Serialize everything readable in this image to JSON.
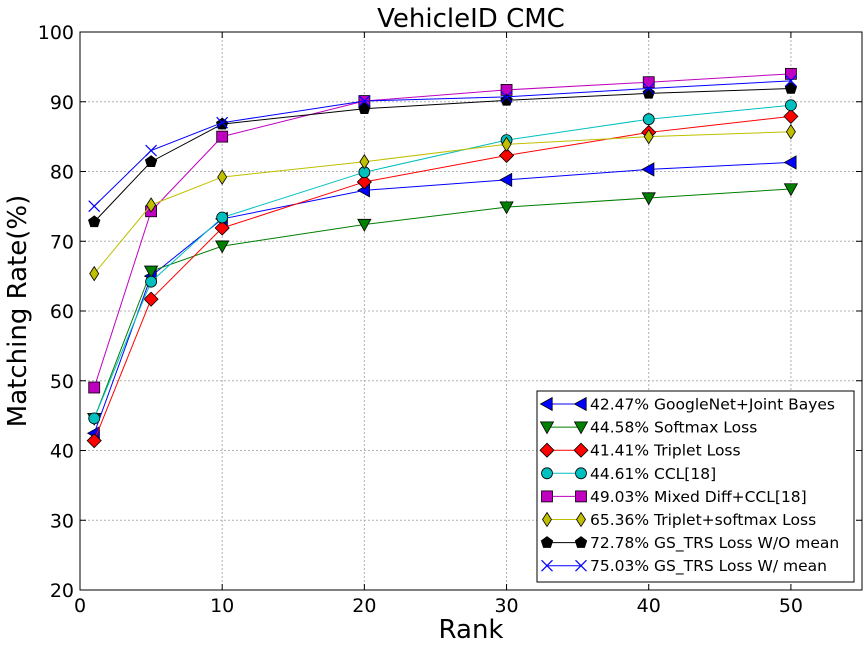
{
  "chart_data": {
    "type": "line",
    "title": "VehicleID CMC",
    "xlabel": "Rank",
    "ylabel": "Matching Rate(%)",
    "xlim": [
      0,
      55
    ],
    "ylim": [
      20,
      100
    ],
    "xticks": [
      0,
      10,
      20,
      30,
      40,
      50
    ],
    "yticks": [
      20,
      30,
      40,
      50,
      60,
      70,
      80,
      90,
      100
    ],
    "grid": true,
    "legend_position": "lower-right",
    "x": [
      1,
      5,
      10,
      20,
      30,
      40,
      50
    ],
    "series": [
      {
        "name": "42.47% GoogleNet+Joint Bayes",
        "color": "#0000ff",
        "marker": "triangle-left",
        "values": [
          42.47,
          65.0,
          73.2,
          77.3,
          78.8,
          80.3,
          81.3
        ]
      },
      {
        "name": "44.58% Softmax Loss",
        "color": "#007f00",
        "marker": "triangle-down",
        "values": [
          44.58,
          65.7,
          69.3,
          72.4,
          74.9,
          76.2,
          77.5
        ]
      },
      {
        "name": "41.41% Triplet Loss",
        "color": "#ff0000",
        "marker": "diamond",
        "values": [
          41.41,
          61.7,
          71.9,
          78.5,
          82.3,
          85.6,
          87.9
        ]
      },
      {
        "name": "44.61% CCL[18]",
        "color": "#00bfbf",
        "marker": "circle",
        "values": [
          44.61,
          64.2,
          73.4,
          79.9,
          84.5,
          87.5,
          89.5
        ]
      },
      {
        "name": "49.03% Mixed Diff+CCL[18]",
        "color": "#bf00bf",
        "marker": "square",
        "values": [
          49.03,
          74.3,
          85.0,
          90.1,
          91.7,
          92.8,
          94.0
        ]
      },
      {
        "name": "65.36% Triplet+softmax Loss",
        "color": "#bfbf00",
        "marker": "thin-diamond",
        "values": [
          65.36,
          75.2,
          79.2,
          81.4,
          83.9,
          85.0,
          85.7
        ]
      },
      {
        "name": "72.78% GS_TRS Loss W/O mean",
        "color": "#000000",
        "marker": "pentagon",
        "values": [
          72.78,
          81.4,
          86.8,
          89.0,
          90.2,
          91.2,
          91.9
        ]
      },
      {
        "name": "75.03% GS_TRS Loss W/ mean",
        "color": "#0000ff",
        "marker": "x",
        "values": [
          75.03,
          83.0,
          87.0,
          90.1,
          90.7,
          91.9,
          93.0
        ]
      }
    ]
  }
}
